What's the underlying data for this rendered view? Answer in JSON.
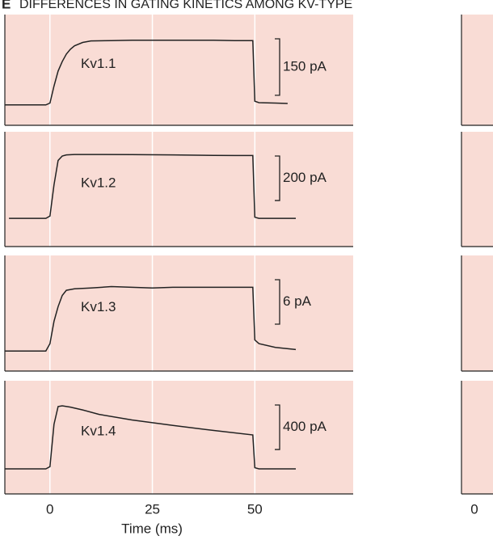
{
  "figure_letter": "E",
  "title": "DIFFERENCES IN GATING KINETICS AMONG KV-TYPE",
  "right_xticks": [
    0
  ],
  "chart_data": [
    {
      "type": "line",
      "label": "Kv1.1",
      "color": "#222222",
      "xlim": [
        -11,
        74
      ],
      "xticks": [
        0,
        25,
        50
      ],
      "ylim": [
        -54,
        240
      ],
      "scale_bar": {
        "value": 150,
        "label": "150 pA"
      },
      "x": [
        -11,
        -8,
        -4,
        -1,
        0,
        1,
        2,
        3,
        4,
        5,
        6,
        8,
        10,
        15,
        20,
        25,
        30,
        35,
        40,
        45,
        49.5,
        50,
        51,
        55,
        58
      ],
      "values": [
        0,
        0,
        0,
        0,
        5,
        50,
        90,
        115,
        135,
        148,
        157,
        166,
        170,
        171,
        172,
        172,
        172,
        172,
        172,
        171,
        171,
        10,
        6,
        5,
        4
      ]
    },
    {
      "type": "line",
      "label": "Kv1.2",
      "color": "#222222",
      "xlim": [
        -11,
        74
      ],
      "xticks": [
        0,
        25,
        50
      ],
      "ylim": [
        -127,
        389
      ],
      "scale_bar": {
        "value": 200,
        "label": "200 pA"
      },
      "x": [
        -10,
        -4,
        -1,
        0,
        1,
        2,
        3,
        4,
        6,
        10,
        20,
        30,
        40,
        45,
        49.5,
        50,
        51,
        55,
        60
      ],
      "values": [
        0,
        0,
        0,
        10,
        150,
        260,
        280,
        285,
        287,
        287,
        286,
        285,
        283,
        282,
        282,
        5,
        0,
        0,
        0
      ]
    },
    {
      "type": "line",
      "label": "Kv1.3",
      "color": "#222222",
      "xlim": [
        -11,
        74
      ],
      "xticks": [
        0,
        25,
        50
      ],
      "ylim": [
        -2.7,
        12.9
      ],
      "scale_bar": {
        "value": 6,
        "label": "6 pA"
      },
      "x": [
        -11,
        -4,
        -1,
        0,
        1,
        2,
        3,
        4,
        6,
        10,
        15,
        20,
        25,
        30,
        35,
        40,
        45,
        49.5,
        50,
        51,
        55,
        60
      ],
      "values": [
        0,
        0,
        0,
        1,
        4,
        6,
        7.5,
        8.2,
        8.4,
        8.5,
        8.7,
        8.6,
        8.5,
        8.6,
        8.6,
        8.6,
        8.6,
        8.6,
        1.5,
        1,
        0.5,
        0.2
      ]
    },
    {
      "type": "line",
      "label": "Kv1.4",
      "color": "#222222",
      "xlim": [
        -11,
        74
      ],
      "xticks": [
        0,
        25,
        50
      ],
      "ylim": [
        -225,
        792
      ],
      "scale_bar": {
        "value": 400,
        "label": "400 pA"
      },
      "xlabel": "Time (ms)",
      "x": [
        -11,
        -4,
        -1,
        0,
        1,
        2,
        3,
        5,
        8,
        12,
        20,
        30,
        40,
        49.5,
        50,
        51,
        55,
        60
      ],
      "values": [
        0,
        0,
        0,
        20,
        400,
        560,
        567,
        555,
        530,
        490,
        440,
        390,
        345,
        305,
        10,
        0,
        0,
        0
      ]
    }
  ]
}
